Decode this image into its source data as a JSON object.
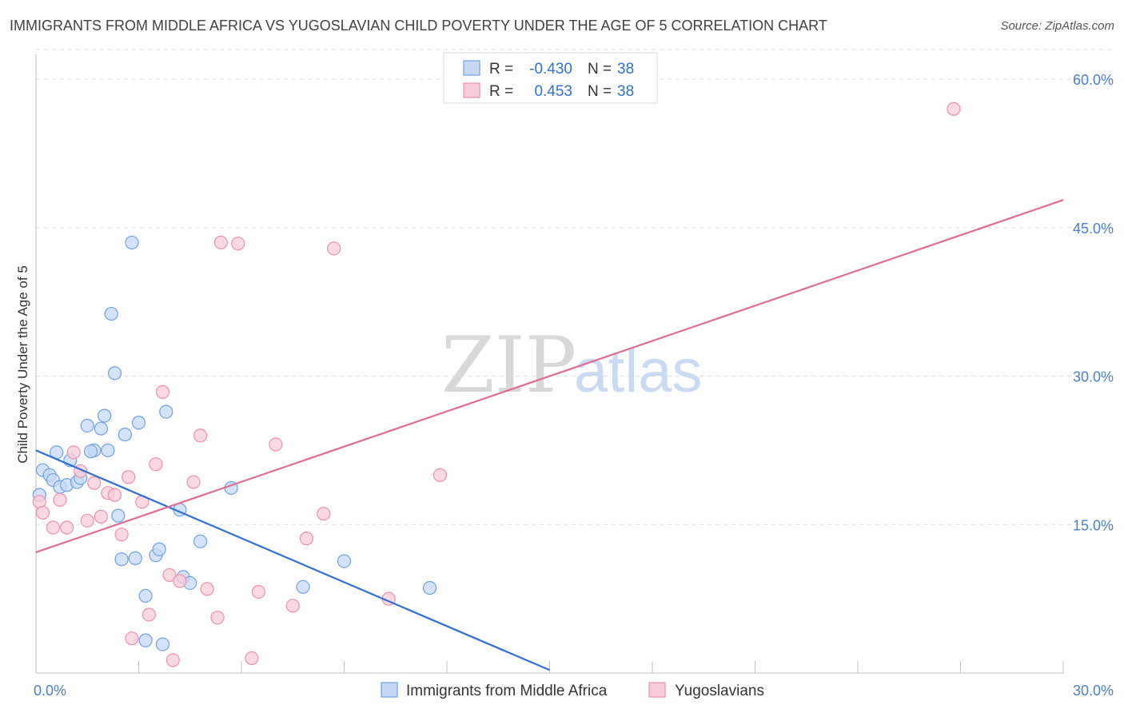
{
  "title": "IMMIGRANTS FROM MIDDLE AFRICA VS YUGOSLAVIAN CHILD POVERTY UNDER THE AGE OF 5 CORRELATION CHART",
  "source": "Source: ZipAtlas.com",
  "watermark": {
    "zip": "ZIP",
    "atlas": "atlas"
  },
  "legend": [
    {
      "r_label": "R =",
      "r_value": "-0.430",
      "n_label": "N =",
      "n_value": "38",
      "color": "#6ea1e6",
      "fill": "#c5d9f5"
    },
    {
      "r_label": "R =",
      "r_value": "0.453",
      "n_label": "N =",
      "n_value": "38",
      "color": "#ee8fab",
      "fill": "#f9ccd9"
    }
  ],
  "chart_data": {
    "type": "scatter",
    "title": "IMMIGRANTS FROM MIDDLE AFRICA VS YUGOSLAVIAN CHILD POVERTY UNDER THE AGE OF 5 CORRELATION CHART",
    "xlabel": "",
    "ylabel": "Child Poverty Under the Age of 5",
    "xlim": [
      0,
      30
    ],
    "ylim": [
      0,
      63
    ],
    "x_tick_labels": [
      "0.0%",
      "30.0%"
    ],
    "y_ticks": [
      15,
      30,
      45,
      60
    ],
    "y_tick_labels": [
      "15.0%",
      "30.0%",
      "45.0%",
      "60.0%"
    ],
    "grid": "horizontal dashed",
    "legend_position": "top-center",
    "series": [
      {
        "name": "Immigrants from Middle Africa",
        "color": "#6ea1e6",
        "fill": "#c5d9f5",
        "trend": {
          "x": [
            0,
            15
          ],
          "y": [
            22.5,
            0.3
          ],
          "color": "#2f6fd6"
        },
        "points": [
          [
            0.1,
            18.0
          ],
          [
            0.2,
            20.5
          ],
          [
            0.4,
            20.0
          ],
          [
            0.5,
            19.5
          ],
          [
            0.6,
            22.3
          ],
          [
            0.7,
            18.8
          ],
          [
            0.9,
            19.0
          ],
          [
            1.0,
            21.5
          ],
          [
            1.2,
            19.3
          ],
          [
            1.3,
            19.7
          ],
          [
            1.5,
            25.0
          ],
          [
            1.7,
            22.5
          ],
          [
            1.9,
            24.7
          ],
          [
            2.0,
            26.0
          ],
          [
            2.2,
            36.3
          ],
          [
            2.3,
            30.3
          ],
          [
            2.4,
            15.9
          ],
          [
            2.5,
            11.5
          ],
          [
            2.6,
            24.1
          ],
          [
            2.8,
            43.5
          ],
          [
            2.9,
            11.6
          ],
          [
            3.0,
            25.3
          ],
          [
            3.2,
            7.8
          ],
          [
            3.2,
            3.3
          ],
          [
            3.5,
            11.9
          ],
          [
            3.6,
            12.5
          ],
          [
            3.7,
            2.9
          ],
          [
            3.8,
            26.4
          ],
          [
            4.2,
            16.5
          ],
          [
            4.3,
            9.7
          ],
          [
            4.5,
            9.1
          ],
          [
            4.8,
            13.3
          ],
          [
            5.7,
            18.7
          ],
          [
            7.8,
            8.7
          ],
          [
            9.0,
            11.3
          ],
          [
            11.5,
            8.6
          ],
          [
            1.6,
            22.4
          ],
          [
            2.1,
            22.5
          ]
        ]
      },
      {
        "name": "Yugoslavians",
        "color": "#ee8fab",
        "fill": "#f9ccd9",
        "trend": {
          "x": [
            0,
            30
          ],
          "y": [
            12.2,
            47.8
          ],
          "color": "#e06b93"
        },
        "points": [
          [
            0.1,
            17.3
          ],
          [
            0.2,
            16.2
          ],
          [
            0.5,
            14.7
          ],
          [
            0.7,
            17.5
          ],
          [
            0.9,
            14.7
          ],
          [
            1.1,
            22.3
          ],
          [
            1.3,
            20.4
          ],
          [
            1.5,
            15.4
          ],
          [
            1.7,
            19.2
          ],
          [
            1.9,
            15.8
          ],
          [
            2.1,
            18.2
          ],
          [
            2.3,
            18.0
          ],
          [
            2.5,
            14.0
          ],
          [
            2.7,
            19.8
          ],
          [
            2.8,
            3.5
          ],
          [
            3.1,
            17.3
          ],
          [
            3.3,
            5.9
          ],
          [
            3.5,
            21.1
          ],
          [
            3.7,
            28.4
          ],
          [
            3.9,
            9.9
          ],
          [
            4.0,
            1.3
          ],
          [
            4.2,
            9.3
          ],
          [
            4.6,
            19.3
          ],
          [
            4.8,
            24.0
          ],
          [
            5.0,
            8.5
          ],
          [
            5.3,
            5.6
          ],
          [
            5.4,
            43.5
          ],
          [
            5.9,
            43.4
          ],
          [
            6.3,
            1.5
          ],
          [
            6.5,
            8.2
          ],
          [
            7.0,
            23.1
          ],
          [
            7.5,
            6.8
          ],
          [
            7.9,
            13.6
          ],
          [
            8.4,
            16.1
          ],
          [
            8.7,
            42.9
          ],
          [
            10.3,
            7.5
          ],
          [
            11.8,
            20.0
          ],
          [
            26.8,
            57.0
          ]
        ]
      }
    ]
  }
}
